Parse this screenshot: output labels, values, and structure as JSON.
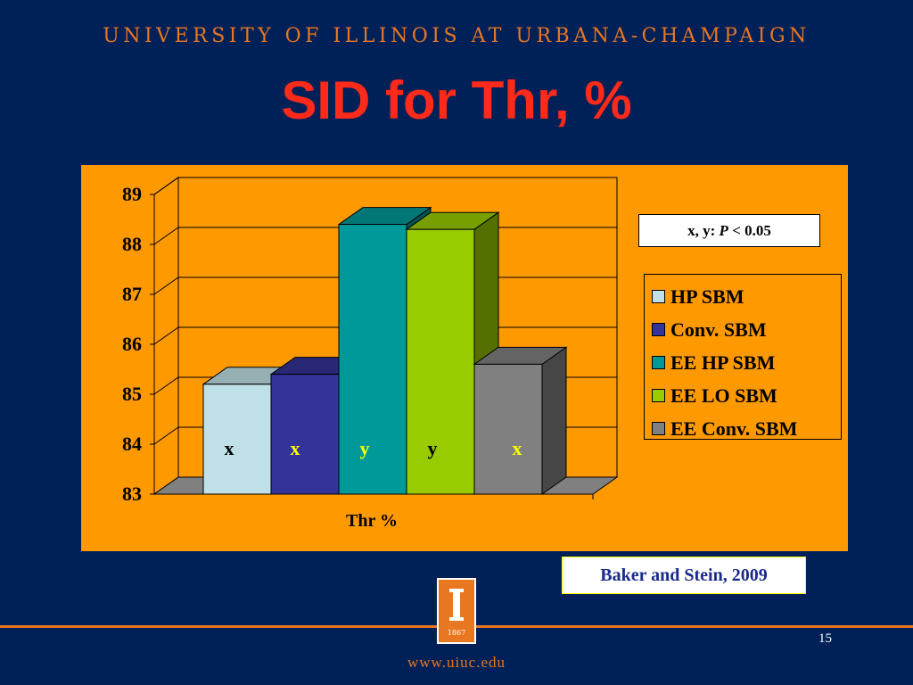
{
  "slide": {
    "header": "UNIVERSITY OF ILLINOIS AT URBANA-CHAMPAIGN",
    "title": "SID for Thr, %",
    "sig_prefix": "x, y: ",
    "sig_p": "P",
    "sig_suffix": " < 0.05",
    "citation": "Baker and Stein, 2009",
    "page_number": "15",
    "url": "www.uiuc.edu",
    "seal_icon": "university-seal-icon",
    "seal_year": "1867"
  },
  "colors": {
    "background": "#002058",
    "accent": "#E87722",
    "title": "#FF2A1A",
    "plot_area": "#FF9900"
  },
  "chart_data": {
    "type": "bar",
    "title": "",
    "xlabel": "Thr %",
    "ylabel": "",
    "ylim": [
      83,
      89
    ],
    "yticks": [
      "83",
      "84",
      "85",
      "86",
      "87",
      "88",
      "89"
    ],
    "categories": [
      "Thr %"
    ],
    "grid": true,
    "legend_position": "right",
    "series": [
      {
        "name": "HP SBM",
        "values": [
          85.2
        ],
        "label": "x",
        "label_color": "#000000",
        "color": "#BFE0E6"
      },
      {
        "name": "Conv. SBM",
        "values": [
          85.4
        ],
        "label": "x",
        "label_color": "#FFFF00",
        "color": "#333399"
      },
      {
        "name": "EE HP SBM",
        "values": [
          88.4
        ],
        "label": "y",
        "label_color": "#FFFF00",
        "color": "#009999"
      },
      {
        "name": "EE LO SBM",
        "values": [
          88.3
        ],
        "label": "y",
        "label_color": "#000000",
        "color": "#99CC00"
      },
      {
        "name": "EE Conv. SBM",
        "values": [
          85.6
        ],
        "label": "x",
        "label_color": "#FFFF00",
        "color": "#808080"
      }
    ]
  }
}
